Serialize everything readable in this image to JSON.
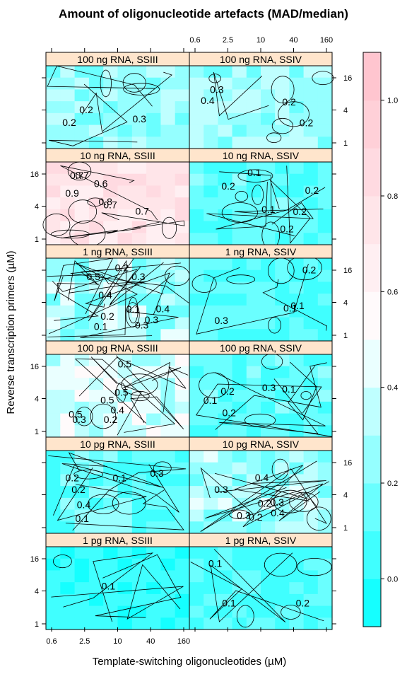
{
  "chart_data": {
    "type": "heatmap",
    "title": "Amount of oligonucleotide artefacts (MAD/median)",
    "xlabel": "Template-switching oligonucleotides (µM)",
    "ylabel": "Reverse transcription primers (µM)",
    "x_ticks": [
      "0.6",
      "2.5",
      "10",
      "40",
      "160"
    ],
    "y_ticks": [
      "1",
      "4",
      "16"
    ],
    "colorbar": {
      "ticks": [
        "0.0",
        "0.2",
        "0.4",
        "0.6",
        "0.8",
        "1.0"
      ],
      "range": [
        -0.1,
        1.1
      ],
      "low_color": "#00ffff",
      "mid_color": "#ffffff",
      "high_color": "#ffc0cb"
    },
    "strip_color": "#ffe5cc",
    "panels": [
      {
        "label": "100 ng RNA, SSIII",
        "base": 0.25,
        "var": 0.12,
        "contours": [
          "0.2",
          "0.2",
          "0.3"
        ]
      },
      {
        "label": "100 ng RNA, SSIV",
        "base": 0.28,
        "var": 0.12,
        "contours": [
          "0.4",
          "0.3",
          "0.2",
          "0.2"
        ]
      },
      {
        "label": "10 ng RNA, SSIII",
        "base": 0.72,
        "var": 0.12,
        "contours": [
          "0.7",
          "0.7",
          "0.7",
          "0.8",
          "0.7",
          "0.9",
          "0.6"
        ]
      },
      {
        "label": "10 ng RNA, SSIV",
        "base": 0.12,
        "var": 0.1,
        "contours": [
          "0.1",
          "0.2",
          "0.2",
          "0.2",
          "0.1",
          "0.2"
        ]
      },
      {
        "label": "1 ng RNA, SSIII",
        "base": 0.28,
        "var": 0.18,
        "contours": [
          "0.4",
          "0.3",
          "0.3",
          "0.4",
          "0.5",
          "0.2",
          "0.1",
          "0.3",
          "0.2",
          "0.1"
        ]
      },
      {
        "label": "1 ng RNA, SSIV",
        "base": 0.1,
        "var": 0.1,
        "contours": [
          "0.1",
          "0.2",
          "0.3",
          "0.1"
        ]
      },
      {
        "label": "100 pg RNA, SSIII",
        "base": 0.4,
        "var": 0.15,
        "contours": [
          "0.4",
          "0.5",
          "0.3",
          "0.5",
          "0.5",
          "0.5",
          "0.2"
        ]
      },
      {
        "label": "100 pg RNA, SSIV",
        "base": 0.12,
        "var": 0.1,
        "contours": [
          "0.2",
          "0.3",
          "0.2",
          "0.1",
          "0.1"
        ]
      },
      {
        "label": "10 pg RNA, SSIII",
        "base": 0.12,
        "var": 0.12,
        "contours": [
          "0.1",
          "0.2",
          "0.4",
          "0.2",
          "0.3",
          "0.1"
        ]
      },
      {
        "label": "10 pg RNA, SSIV",
        "base": 0.28,
        "var": 0.15,
        "contours": [
          "0.3",
          "0.4",
          "0.3",
          "0.2",
          "0.4",
          "0.3",
          "0.2"
        ]
      },
      {
        "label": "1 pg RNA, SSIII",
        "base": 0.02,
        "var": 0.04,
        "contours": [
          "0.1"
        ]
      },
      {
        "label": "1 pg RNA, SSIV",
        "base": 0.08,
        "var": 0.08,
        "contours": [
          "0.1",
          "0.1",
          "0.2"
        ]
      }
    ]
  }
}
